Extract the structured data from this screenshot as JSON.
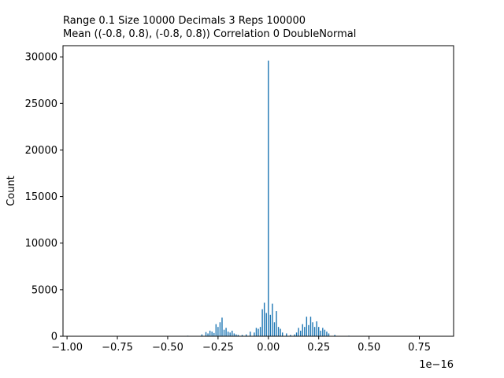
{
  "chart_data": {
    "type": "histogram",
    "title_lines": [
      "Range 0.1   Size 10000   Decimals 3   Reps 100000",
      "Mean ((-0.8, 0.8), (-0.8, 0.8))  Correlation 0  DoubleNormal"
    ],
    "xlabel": "",
    "ylabel": "Count",
    "x_offset_label": "1e−16",
    "x_scale": 1e-16,
    "xlim": [
      -1.02,
      0.92
    ],
    "ylim": [
      0,
      31200
    ],
    "bar_width": 0.0055,
    "bar_color": "#1f77b4",
    "x_ticks": [
      {
        "value": -1.0,
        "label": "−1.00"
      },
      {
        "value": -0.75,
        "label": "−0.75"
      },
      {
        "value": -0.5,
        "label": "−0.50"
      },
      {
        "value": -0.25,
        "label": "−0.25"
      },
      {
        "value": 0.0,
        "label": "0.00"
      },
      {
        "value": 0.25,
        "label": "0.25"
      },
      {
        "value": 0.5,
        "label": "0.50"
      },
      {
        "value": 0.75,
        "label": "0.75"
      }
    ],
    "y_ticks": [
      {
        "value": 0,
        "label": "0"
      },
      {
        "value": 5000,
        "label": "5000"
      },
      {
        "value": 10000,
        "label": "10000"
      },
      {
        "value": 15000,
        "label": "15000"
      },
      {
        "value": 20000,
        "label": "20000"
      },
      {
        "value": 25000,
        "label": "25000"
      },
      {
        "value": 30000,
        "label": "30000"
      }
    ],
    "x": [
      -0.4,
      -0.33,
      -0.31,
      -0.3,
      -0.29,
      -0.28,
      -0.27,
      -0.26,
      -0.25,
      -0.24,
      -0.23,
      -0.22,
      -0.21,
      -0.2,
      -0.19,
      -0.18,
      -0.17,
      -0.16,
      -0.15,
      -0.13,
      -0.11,
      -0.09,
      -0.07,
      -0.06,
      -0.05,
      -0.04,
      -0.03,
      -0.02,
      -0.01,
      0.0,
      0.01,
      0.02,
      0.03,
      0.04,
      0.05,
      0.06,
      0.07,
      0.09,
      0.11,
      0.13,
      0.14,
      0.15,
      0.16,
      0.17,
      0.18,
      0.19,
      0.2,
      0.21,
      0.22,
      0.23,
      0.24,
      0.25,
      0.26,
      0.27,
      0.28,
      0.29,
      0.3,
      0.33,
      0.4
    ],
    "values": [
      60,
      200,
      450,
      300,
      600,
      500,
      350,
      1300,
      1000,
      1500,
      2000,
      700,
      900,
      500,
      400,
      600,
      300,
      200,
      150,
      150,
      200,
      500,
      400,
      900,
      800,
      1000,
      2900,
      3600,
      2500,
      29600,
      2300,
      3500,
      1500,
      2700,
      1000,
      800,
      400,
      300,
      150,
      200,
      400,
      900,
      600,
      1300,
      1000,
      2100,
      1200,
      2100,
      1500,
      1000,
      1600,
      1000,
      600,
      900,
      700,
      500,
      300,
      150,
      60
    ]
  }
}
